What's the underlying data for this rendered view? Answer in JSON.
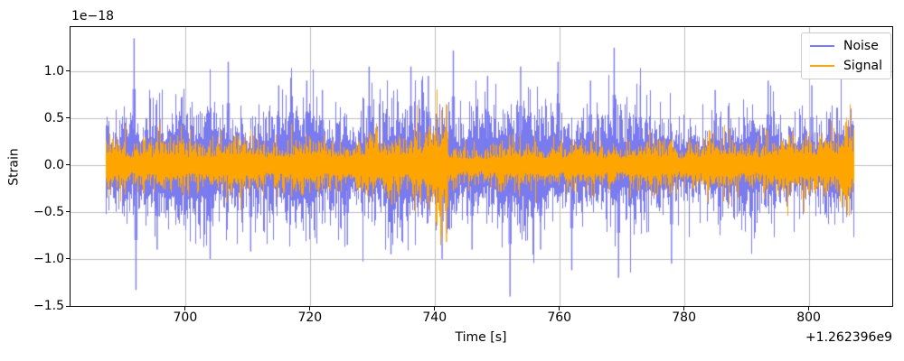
{
  "figure": {
    "background": "#ffffff"
  },
  "chart_data": {
    "type": "line",
    "title": "",
    "xlabel": "Time [s]",
    "ylabel": "Strain",
    "x_offset_text": "+1.262396e9",
    "y_scale_text": "1e−18",
    "xlim": [
      681.6,
      813.4
    ],
    "ylim": [
      -1.5,
      1.47
    ],
    "xticks": [
      700,
      720,
      740,
      760,
      780,
      800
    ],
    "xtick_labels": [
      "700",
      "720",
      "740",
      "760",
      "780",
      "800"
    ],
    "yticks": [
      1.0,
      0.5,
      0.0,
      -0.5,
      -1.0,
      -1.5
    ],
    "ytick_labels": [
      "1.0",
      "0.5",
      "0.0",
      "−0.5",
      "−1.0",
      "−1.5"
    ],
    "grid": true,
    "grid_color": "#bdbdbd",
    "frame_color": "#000000",
    "legend": {
      "position": "upper right",
      "entries": [
        {
          "label": "Noise",
          "color": "#7b7bf0"
        },
        {
          "label": "Signal",
          "color": "#ffa500"
        }
      ]
    },
    "series": [
      {
        "name": "Noise",
        "color": "#7b7bf0",
        "t_start": 687.3,
        "t_end": 807.3,
        "envelope_1e18": [
          [
            687.3,
            0.3
          ],
          [
            700,
            0.31
          ],
          [
            715,
            0.3
          ],
          [
            730,
            0.32
          ],
          [
            742,
            0.33
          ],
          [
            755,
            0.31
          ],
          [
            770,
            0.29
          ],
          [
            780,
            0.26
          ],
          [
            795,
            0.26
          ],
          [
            807.3,
            0.27
          ]
        ],
        "notable_peaks": [
          [
            691.8,
            1.35
          ],
          [
            692.1,
            -1.33
          ],
          [
            695.5,
            -0.9
          ],
          [
            704.0,
            -1.0
          ],
          [
            706.9,
            1.1
          ],
          [
            710.5,
            -0.92
          ],
          [
            715.0,
            0.85
          ],
          [
            719.5,
            0.9
          ],
          [
            722.0,
            0.8
          ],
          [
            726.0,
            -0.85
          ],
          [
            729.5,
            1.05
          ],
          [
            733.0,
            -0.95
          ],
          [
            736.2,
            1.05
          ],
          [
            739.0,
            0.95
          ],
          [
            741.2,
            -1.0
          ],
          [
            743.0,
            1.22
          ],
          [
            746.0,
            -0.9
          ],
          [
            748.5,
            0.95
          ],
          [
            752.1,
            -1.4
          ],
          [
            753.8,
            1.05
          ],
          [
            757.0,
            -0.9
          ],
          [
            759.8,
            1.1
          ],
          [
            762.0,
            -1.12
          ],
          [
            765.0,
            0.9
          ],
          [
            768.8,
            1.25
          ],
          [
            769.5,
            -1.2
          ],
          [
            773.0,
            0.85
          ],
          [
            778.0,
            -1.05
          ],
          [
            785.0,
            0.8
          ],
          [
            793.5,
            0.9
          ],
          [
            800.5,
            0.85
          ]
        ]
      },
      {
        "name": "Signal",
        "color": "#ffa500",
        "t_start": 687.3,
        "t_end": 807.3,
        "envelope_1e18": [
          [
            687.3,
            0.18
          ],
          [
            695,
            0.17
          ],
          [
            705,
            0.18
          ],
          [
            715,
            0.17
          ],
          [
            725,
            0.18
          ],
          [
            733,
            0.2
          ],
          [
            738,
            0.25
          ],
          [
            741,
            0.31
          ],
          [
            741.8,
            0.34
          ],
          [
            742.2,
            0.12
          ],
          [
            747,
            0.13
          ],
          [
            755,
            0.15
          ],
          [
            765,
            0.15
          ],
          [
            775,
            0.16
          ],
          [
            785,
            0.17
          ],
          [
            795,
            0.19
          ],
          [
            803,
            0.23
          ],
          [
            807.3,
            0.24
          ]
        ],
        "chirp": {
          "merger_t": 741.9,
          "peak_v": 0.65,
          "trough_v": -0.82
        }
      }
    ]
  }
}
